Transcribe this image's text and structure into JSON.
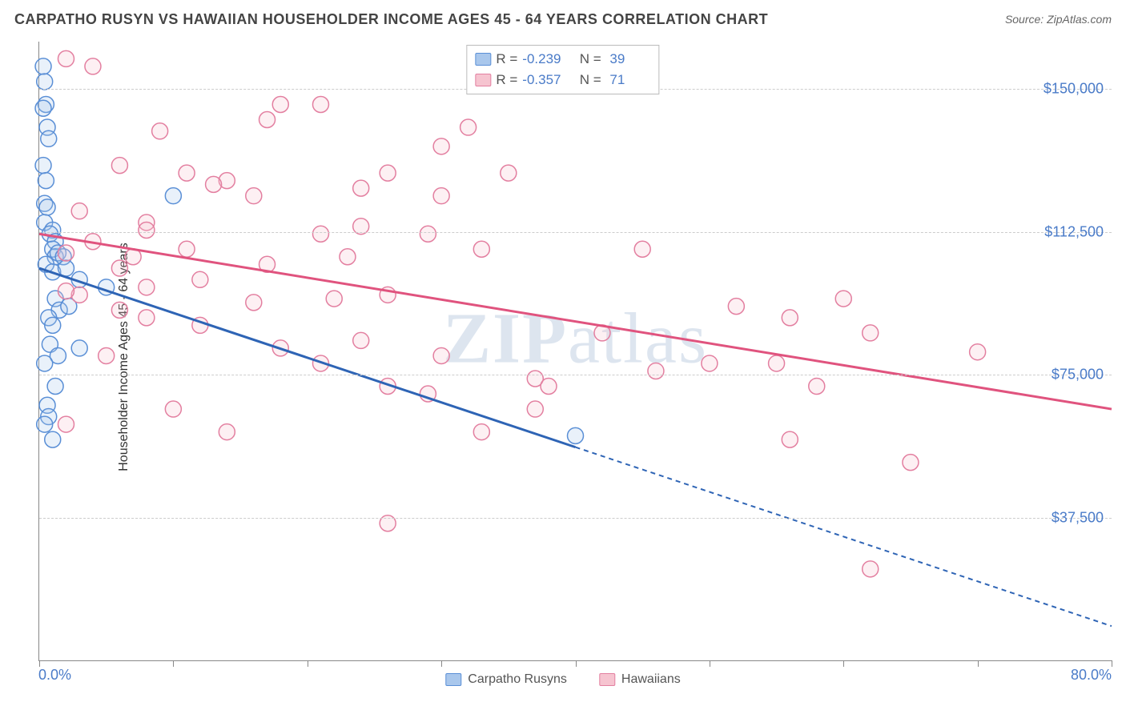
{
  "title": "CARPATHO RUSYN VS HAWAIIAN HOUSEHOLDER INCOME AGES 45 - 64 YEARS CORRELATION CHART",
  "source": "Source: ZipAtlas.com",
  "watermark": {
    "zip": "ZIP",
    "atlas": "atlas"
  },
  "chart": {
    "type": "scatter",
    "background_color": "#ffffff",
    "grid_color": "#cccccc",
    "axis_color": "#888888",
    "xlim": [
      0,
      80
    ],
    "ylim": [
      0,
      162500
    ],
    "x_label_min": "0.0%",
    "x_label_max": "80.0%",
    "x_ticks": [
      0,
      10,
      20,
      30,
      40,
      50,
      60,
      70,
      80
    ],
    "y_ticks": [
      {
        "v": 37500,
        "label": "$37,500"
      },
      {
        "v": 75000,
        "label": "$75,000"
      },
      {
        "v": 112500,
        "label": "$112,500"
      },
      {
        "v": 150000,
        "label": "$150,000"
      }
    ],
    "y_axis_label": "Householder Income Ages 45 - 64 years",
    "ytick_color": "#4a7bc8",
    "label_fontsize": 16,
    "tick_fontsize": 18,
    "marker_radius": 10,
    "marker_fill_opacity": 0.25,
    "marker_stroke_width": 1.5,
    "series": [
      {
        "name": "Carpatho Rusyns",
        "color_fill": "#a9c7ec",
        "color_stroke": "#5a8fd6",
        "R": "-0.239",
        "N": "39",
        "trend": {
          "x1": 0,
          "y1": 103000,
          "x2": 40,
          "y2": 56000,
          "x_solid_end": 40,
          "x3": 80,
          "y3": 9000,
          "color": "#2e64b5",
          "width": 3
        },
        "points": [
          [
            0.3,
            156000
          ],
          [
            0.4,
            152000
          ],
          [
            0.5,
            146000
          ],
          [
            0.3,
            145000
          ],
          [
            0.6,
            140000
          ],
          [
            0.7,
            137000
          ],
          [
            0.3,
            130000
          ],
          [
            0.5,
            126000
          ],
          [
            0.4,
            120000
          ],
          [
            0.6,
            119000
          ],
          [
            0.4,
            115000
          ],
          [
            1.0,
            113000
          ],
          [
            0.8,
            112000
          ],
          [
            1.2,
            110000
          ],
          [
            1.0,
            108000
          ],
          [
            1.2,
            106000
          ],
          [
            1.4,
            107000
          ],
          [
            1.8,
            106000
          ],
          [
            0.5,
            104000
          ],
          [
            1.0,
            102000
          ],
          [
            2.0,
            103000
          ],
          [
            5.0,
            98000
          ],
          [
            3.0,
            100000
          ],
          [
            10,
            122000
          ],
          [
            1.2,
            95000
          ],
          [
            1.5,
            92000
          ],
          [
            0.7,
            90000
          ],
          [
            2.2,
            93000
          ],
          [
            1.0,
            88000
          ],
          [
            0.8,
            83000
          ],
          [
            1.4,
            80000
          ],
          [
            0.4,
            78000
          ],
          [
            1.2,
            72000
          ],
          [
            3.0,
            82000
          ],
          [
            0.6,
            67000
          ],
          [
            0.7,
            64000
          ],
          [
            0.4,
            62000
          ],
          [
            1.0,
            58000
          ],
          [
            40,
            59000
          ]
        ]
      },
      {
        "name": "Hawaiians",
        "color_fill": "#f6c4d0",
        "color_stroke": "#e37fa0",
        "R": "-0.357",
        "N": "71",
        "trend": {
          "x1": 0,
          "y1": 112000,
          "x2": 80,
          "y2": 66000,
          "color": "#e0537e",
          "width": 3
        },
        "points": [
          [
            2,
            158000
          ],
          [
            4,
            156000
          ],
          [
            34,
            156000
          ],
          [
            21,
            146000
          ],
          [
            32,
            140000
          ],
          [
            30,
            135000
          ],
          [
            17,
            142000
          ],
          [
            9,
            139000
          ],
          [
            6,
            130000
          ],
          [
            18,
            146000
          ],
          [
            11,
            128000
          ],
          [
            26,
            128000
          ],
          [
            30,
            122000
          ],
          [
            35,
            128000
          ],
          [
            16,
            122000
          ],
          [
            14,
            126000
          ],
          [
            24,
            124000
          ],
          [
            13,
            125000
          ],
          [
            3,
            118000
          ],
          [
            8,
            115000
          ],
          [
            4,
            110000
          ],
          [
            8,
            113000
          ],
          [
            11,
            108000
          ],
          [
            7,
            106000
          ],
          [
            2,
            107000
          ],
          [
            6,
            103000
          ],
          [
            24,
            114000
          ],
          [
            21,
            112000
          ],
          [
            23,
            106000
          ],
          [
            29,
            112000
          ],
          [
            33,
            108000
          ],
          [
            3,
            96000
          ],
          [
            8,
            98000
          ],
          [
            6,
            92000
          ],
          [
            2,
            97000
          ],
          [
            12,
            100000
          ],
          [
            17,
            104000
          ],
          [
            8,
            90000
          ],
          [
            16,
            94000
          ],
          [
            22,
            95000
          ],
          [
            26,
            96000
          ],
          [
            12,
            88000
          ],
          [
            45,
            108000
          ],
          [
            52,
            93000
          ],
          [
            56,
            90000
          ],
          [
            60,
            95000
          ],
          [
            55,
            78000
          ],
          [
            62,
            86000
          ],
          [
            70,
            81000
          ],
          [
            58,
            72000
          ],
          [
            30,
            80000
          ],
          [
            37,
            74000
          ],
          [
            26,
            72000
          ],
          [
            18,
            82000
          ],
          [
            24,
            84000
          ],
          [
            21,
            78000
          ],
          [
            29,
            70000
          ],
          [
            33,
            60000
          ],
          [
            38,
            72000
          ],
          [
            37,
            66000
          ],
          [
            42,
            86000
          ],
          [
            46,
            76000
          ],
          [
            50,
            78000
          ],
          [
            65,
            52000
          ],
          [
            56,
            58000
          ],
          [
            26,
            36000
          ],
          [
            62,
            24000
          ],
          [
            2,
            62000
          ],
          [
            5,
            80000
          ],
          [
            10,
            66000
          ],
          [
            14,
            60000
          ]
        ]
      }
    ],
    "legend": {
      "position": "bottom-center",
      "items": [
        {
          "label": "Carpatho Rusyns",
          "fill": "#a9c7ec",
          "stroke": "#5a8fd6"
        },
        {
          "label": "Hawaiians",
          "fill": "#f6c4d0",
          "stroke": "#e37fa0"
        }
      ]
    },
    "stats_box": {
      "R_label": "R =",
      "N_label": "N ="
    }
  }
}
